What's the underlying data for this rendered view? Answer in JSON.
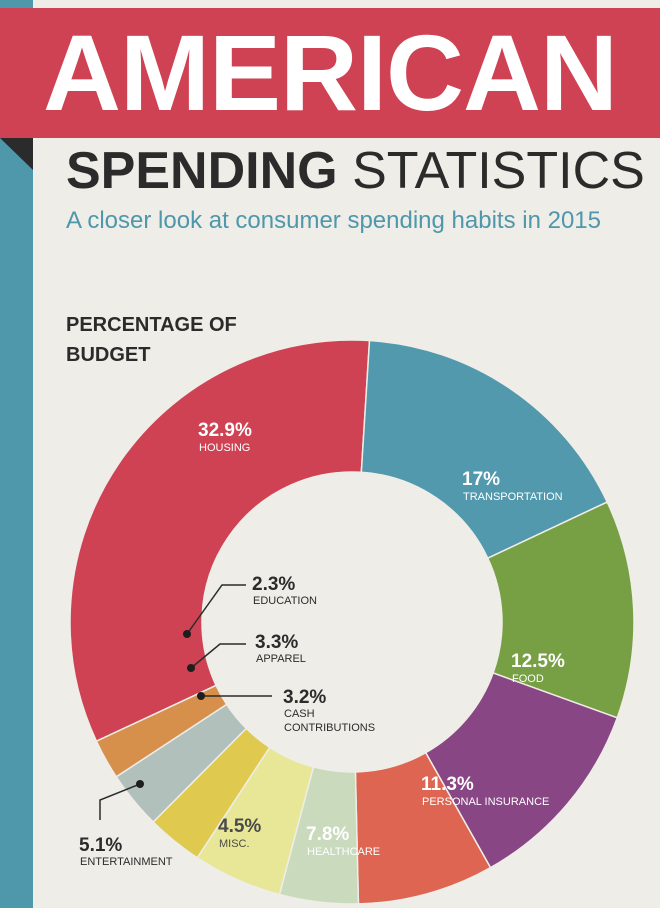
{
  "header": {
    "title": "AMERICAN",
    "subtitle_bold": "SPENDING",
    "subtitle_light": "STATISTICS",
    "tagline": "A closer look at consumer spending habits in 2015"
  },
  "section": {
    "title": "PERCENTAGE OF BUDGET"
  },
  "colors": {
    "banner": "#cf4253",
    "side_bar": "#4f97aa",
    "background": "#efede7",
    "text_dark": "#2b2b2b"
  },
  "chart_data": {
    "type": "pie",
    "variant": "donut",
    "title": "PERCENTAGE OF BUDGET",
    "slices": [
      {
        "label": "HOUSING",
        "value": 32.9,
        "value_label": "32.9%",
        "color": "#cf4253",
        "label_position": "inside"
      },
      {
        "label": "TRANSPORTATION",
        "value": 17,
        "value_label": "17%",
        "color": "#5299ad",
        "label_position": "inside"
      },
      {
        "label": "FOOD",
        "value": 12.5,
        "value_label": "12.5%",
        "color": "#779f44",
        "label_position": "inside"
      },
      {
        "label": "PERSONAL INSURANCE",
        "value": 11.3,
        "value_label": "11.3%",
        "color": "#894685",
        "label_position": "inside"
      },
      {
        "label": "HEALTHCARE",
        "value": 7.8,
        "value_label": "7.8%",
        "color": "#dd6552",
        "label_position": "inside"
      },
      {
        "label": "MISC.",
        "value": 4.5,
        "value_label": "4.5%",
        "color": "#c9dabd",
        "label_position": "inside"
      },
      {
        "label": "ENTERTAINMENT",
        "value": 5.1,
        "value_label": "5.1%",
        "color": "#e8e797",
        "label_position": "outside"
      },
      {
        "label": "CASH CONTRIBUTIONS",
        "value": 3.2,
        "value_label": "3.2%",
        "color": "#dfc94f",
        "label_position": "center"
      },
      {
        "label": "APPAREL",
        "value": 3.3,
        "value_label": "3.3%",
        "color": "#b1c0bb",
        "label_position": "center"
      },
      {
        "label": "EDUCATION",
        "value": 2.3,
        "value_label": "2.3%",
        "color": "#d78f4c",
        "label_position": "center"
      }
    ]
  }
}
